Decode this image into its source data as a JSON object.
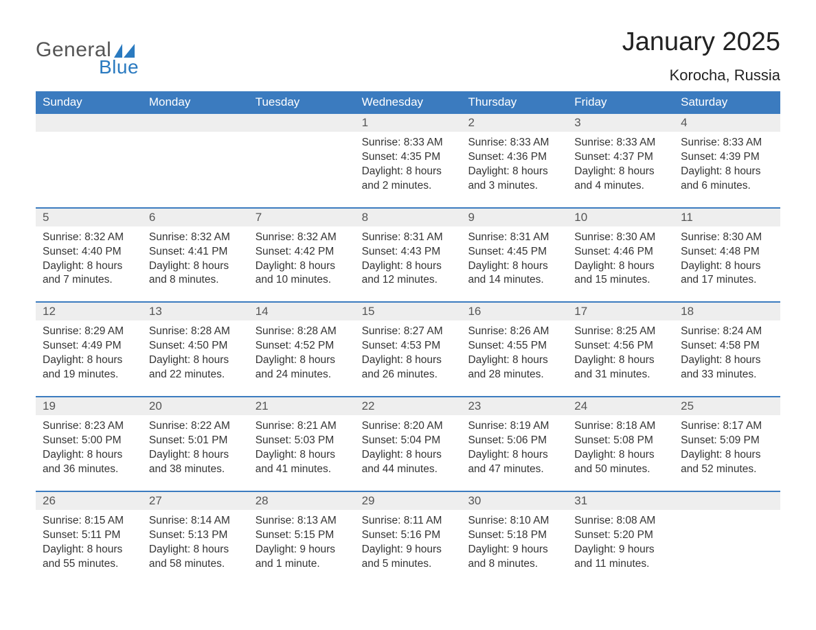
{
  "logo": {
    "word1": "General",
    "word2": "Blue",
    "text_color": "#555555",
    "accent_color": "#2a7ac0"
  },
  "title": "January 2025",
  "location": "Korocha, Russia",
  "colors": {
    "header_bg": "#3b7bbf",
    "header_text": "#ffffff",
    "daynum_bg": "#eeeeee",
    "daynum_text": "#555555",
    "week_divider": "#3b7bbf",
    "body_text": "#333333",
    "page_bg": "#ffffff"
  },
  "weekdays": [
    "Sunday",
    "Monday",
    "Tuesday",
    "Wednesday",
    "Thursday",
    "Friday",
    "Saturday"
  ],
  "weeks": [
    [
      null,
      null,
      null,
      {
        "n": "1",
        "sunrise": "8:33 AM",
        "sunset": "4:35 PM",
        "daylight": "8 hours and 2 minutes."
      },
      {
        "n": "2",
        "sunrise": "8:33 AM",
        "sunset": "4:36 PM",
        "daylight": "8 hours and 3 minutes."
      },
      {
        "n": "3",
        "sunrise": "8:33 AM",
        "sunset": "4:37 PM",
        "daylight": "8 hours and 4 minutes."
      },
      {
        "n": "4",
        "sunrise": "8:33 AM",
        "sunset": "4:39 PM",
        "daylight": "8 hours and 6 minutes."
      }
    ],
    [
      {
        "n": "5",
        "sunrise": "8:32 AM",
        "sunset": "4:40 PM",
        "daylight": "8 hours and 7 minutes."
      },
      {
        "n": "6",
        "sunrise": "8:32 AM",
        "sunset": "4:41 PM",
        "daylight": "8 hours and 8 minutes."
      },
      {
        "n": "7",
        "sunrise": "8:32 AM",
        "sunset": "4:42 PM",
        "daylight": "8 hours and 10 minutes."
      },
      {
        "n": "8",
        "sunrise": "8:31 AM",
        "sunset": "4:43 PM",
        "daylight": "8 hours and 12 minutes."
      },
      {
        "n": "9",
        "sunrise": "8:31 AM",
        "sunset": "4:45 PM",
        "daylight": "8 hours and 14 minutes."
      },
      {
        "n": "10",
        "sunrise": "8:30 AM",
        "sunset": "4:46 PM",
        "daylight": "8 hours and 15 minutes."
      },
      {
        "n": "11",
        "sunrise": "8:30 AM",
        "sunset": "4:48 PM",
        "daylight": "8 hours and 17 minutes."
      }
    ],
    [
      {
        "n": "12",
        "sunrise": "8:29 AM",
        "sunset": "4:49 PM",
        "daylight": "8 hours and 19 minutes."
      },
      {
        "n": "13",
        "sunrise": "8:28 AM",
        "sunset": "4:50 PM",
        "daylight": "8 hours and 22 minutes."
      },
      {
        "n": "14",
        "sunrise": "8:28 AM",
        "sunset": "4:52 PM",
        "daylight": "8 hours and 24 minutes."
      },
      {
        "n": "15",
        "sunrise": "8:27 AM",
        "sunset": "4:53 PM",
        "daylight": "8 hours and 26 minutes."
      },
      {
        "n": "16",
        "sunrise": "8:26 AM",
        "sunset": "4:55 PM",
        "daylight": "8 hours and 28 minutes."
      },
      {
        "n": "17",
        "sunrise": "8:25 AM",
        "sunset": "4:56 PM",
        "daylight": "8 hours and 31 minutes."
      },
      {
        "n": "18",
        "sunrise": "8:24 AM",
        "sunset": "4:58 PM",
        "daylight": "8 hours and 33 minutes."
      }
    ],
    [
      {
        "n": "19",
        "sunrise": "8:23 AM",
        "sunset": "5:00 PM",
        "daylight": "8 hours and 36 minutes."
      },
      {
        "n": "20",
        "sunrise": "8:22 AM",
        "sunset": "5:01 PM",
        "daylight": "8 hours and 38 minutes."
      },
      {
        "n": "21",
        "sunrise": "8:21 AM",
        "sunset": "5:03 PM",
        "daylight": "8 hours and 41 minutes."
      },
      {
        "n": "22",
        "sunrise": "8:20 AM",
        "sunset": "5:04 PM",
        "daylight": "8 hours and 44 minutes."
      },
      {
        "n": "23",
        "sunrise": "8:19 AM",
        "sunset": "5:06 PM",
        "daylight": "8 hours and 47 minutes."
      },
      {
        "n": "24",
        "sunrise": "8:18 AM",
        "sunset": "5:08 PM",
        "daylight": "8 hours and 50 minutes."
      },
      {
        "n": "25",
        "sunrise": "8:17 AM",
        "sunset": "5:09 PM",
        "daylight": "8 hours and 52 minutes."
      }
    ],
    [
      {
        "n": "26",
        "sunrise": "8:15 AM",
        "sunset": "5:11 PM",
        "daylight": "8 hours and 55 minutes."
      },
      {
        "n": "27",
        "sunrise": "8:14 AM",
        "sunset": "5:13 PM",
        "daylight": "8 hours and 58 minutes."
      },
      {
        "n": "28",
        "sunrise": "8:13 AM",
        "sunset": "5:15 PM",
        "daylight": "9 hours and 1 minute."
      },
      {
        "n": "29",
        "sunrise": "8:11 AM",
        "sunset": "5:16 PM",
        "daylight": "9 hours and 5 minutes."
      },
      {
        "n": "30",
        "sunrise": "8:10 AM",
        "sunset": "5:18 PM",
        "daylight": "9 hours and 8 minutes."
      },
      {
        "n": "31",
        "sunrise": "8:08 AM",
        "sunset": "5:20 PM",
        "daylight": "9 hours and 11 minutes."
      },
      null
    ]
  ],
  "labels": {
    "sunrise": "Sunrise:",
    "sunset": "Sunset:",
    "daylight": "Daylight:"
  }
}
